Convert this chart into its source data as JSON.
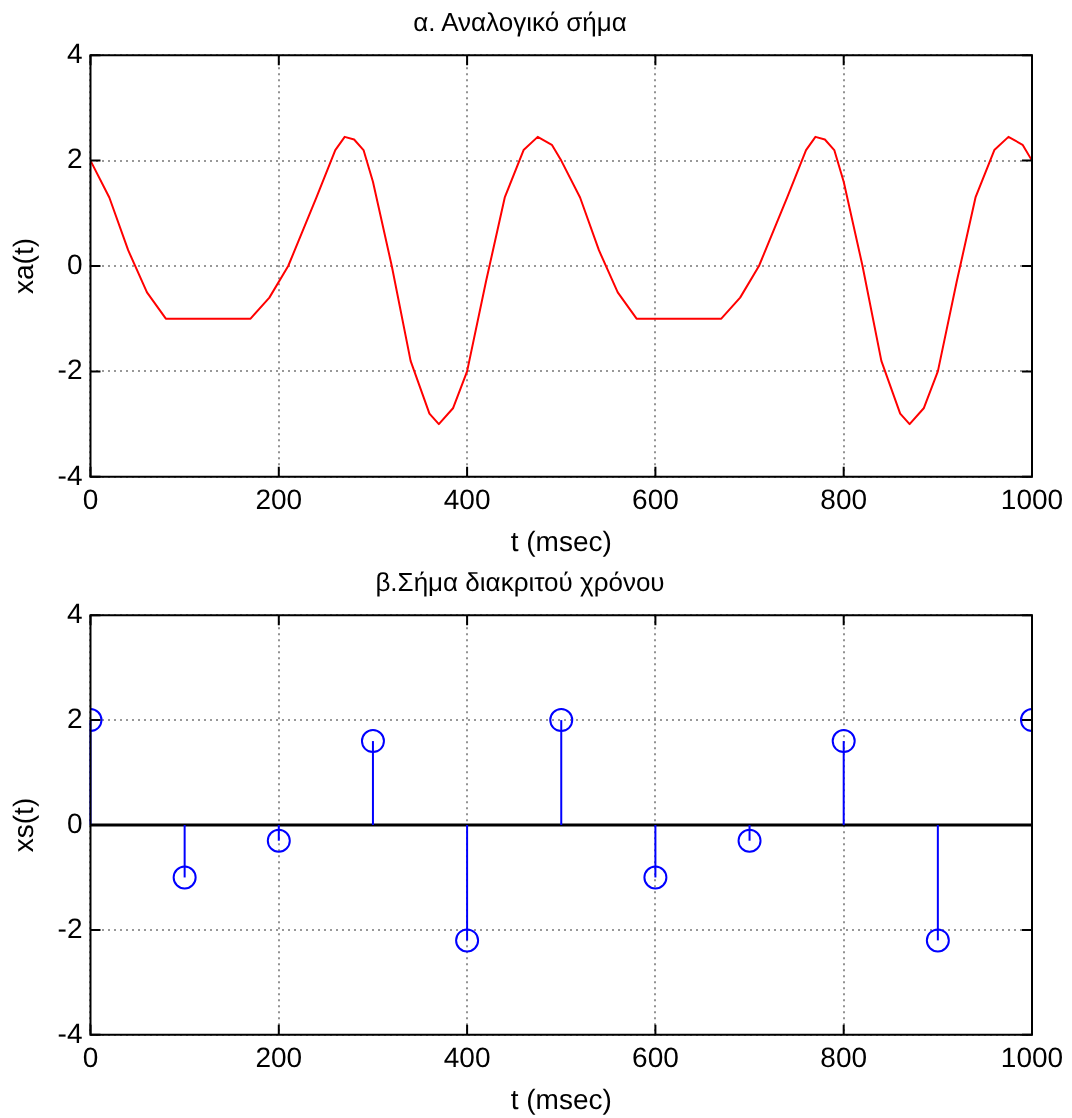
{
  "chart_data": [
    {
      "type": "line",
      "title": "α. Αναλογικό σήμα",
      "xlabel": "t (msec)",
      "ylabel": "xa(t)",
      "xlim": [
        0,
        1000
      ],
      "xticks": [
        0,
        200,
        400,
        600,
        800,
        1000
      ],
      "ylim": [
        -4,
        4
      ],
      "yticks": [
        -4,
        -2,
        0,
        2,
        4
      ],
      "grid": true,
      "legend": false,
      "marker": "none",
      "line_style": "solid",
      "series": [
        {
          "color": "#ff0000",
          "x": [
            0,
            20,
            40,
            60,
            80,
            170,
            190,
            210,
            240,
            260,
            270,
            280,
            290,
            300,
            320,
            340,
            360,
            370,
            385,
            400,
            420,
            440,
            460,
            475,
            490,
            500,
            520,
            540,
            560,
            580,
            670,
            690,
            710,
            740,
            760,
            770,
            780,
            790,
            800,
            820,
            840,
            860,
            870,
            885,
            900,
            920,
            940,
            960,
            975,
            990,
            1000
          ],
          "values": [
            2,
            1.3,
            0.3,
            -0.5,
            -1,
            -1,
            -0.6,
            0,
            1.3,
            2.2,
            2.45,
            2.4,
            2.2,
            1.6,
            0,
            -1.8,
            -2.8,
            -3,
            -2.7,
            -2,
            -0.3,
            1.3,
            2.2,
            2.45,
            2.3,
            2,
            1.3,
            0.3,
            -0.5,
            -1,
            -1,
            -0.6,
            0,
            1.3,
            2.2,
            2.45,
            2.4,
            2.2,
            1.6,
            0,
            -1.8,
            -2.8,
            -3,
            -2.7,
            -2,
            -0.3,
            1.3,
            2.2,
            2.45,
            2.3,
            2
          ]
        }
      ]
    },
    {
      "type": "lollipop",
      "title": "β.Σήμα διακριτού χρόνου",
      "xlabel": "t (msec)",
      "ylabel": "xs(t)",
      "xlim": [
        0,
        1000
      ],
      "xticks": [
        0,
        200,
        400,
        600,
        800,
        1000
      ],
      "ylim": [
        -4,
        4
      ],
      "yticks": [
        -4,
        -2,
        0,
        2,
        4
      ],
      "grid": true,
      "legend": false,
      "marker": "circle",
      "series": [
        {
          "color": "#0000ff",
          "x": [
            0,
            100,
            200,
            300,
            400,
            500,
            600,
            700,
            800,
            900,
            1000
          ],
          "values": [
            2,
            -1,
            -0.3,
            1.6,
            -2.2,
            2,
            -1,
            -0.3,
            1.6,
            -2.2,
            2
          ]
        }
      ]
    }
  ]
}
